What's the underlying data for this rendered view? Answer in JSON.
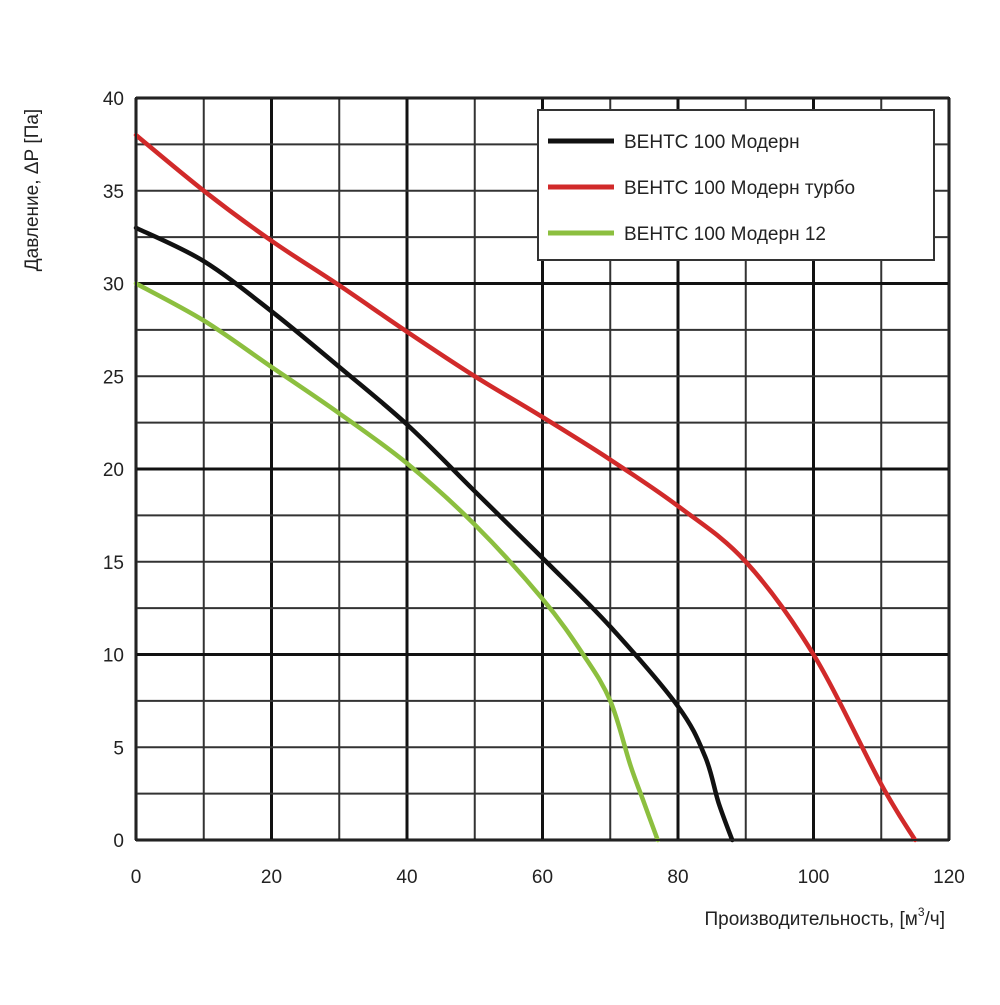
{
  "chart_data": {
    "type": "line",
    "title": "",
    "xlabel_prefix": "Производительность, [м",
    "xlabel_superscript": "3",
    "xlabel_suffix": "/ч]",
    "ylabel": "Давление, ΔР [Па]",
    "xlim": [
      0,
      120
    ],
    "ylim": [
      0,
      40
    ],
    "x_ticks": [
      0,
      20,
      40,
      60,
      80,
      100,
      120
    ],
    "y_ticks": [
      0,
      5,
      10,
      15,
      20,
      25,
      30,
      35,
      40
    ],
    "x_minor_step": 10,
    "y_minor_step": 2.5,
    "x_major_lines": [
      0,
      20,
      40,
      60,
      80,
      100,
      120
    ],
    "y_major_lines": [
      0,
      10,
      20,
      30,
      40
    ],
    "grid": true,
    "legend_position": "top-right",
    "series": [
      {
        "name": "ВЕНТС 100 Модерн",
        "color": "#111111",
        "points": [
          [
            0,
            33
          ],
          [
            10,
            31.2
          ],
          [
            20,
            28.5
          ],
          [
            30,
            25.5
          ],
          [
            40,
            22.4
          ],
          [
            50,
            18.8
          ],
          [
            60,
            15.2
          ],
          [
            70,
            11.5
          ],
          [
            80,
            7.2
          ],
          [
            84,
            4.5
          ],
          [
            86,
            2
          ],
          [
            88,
            0
          ]
        ]
      },
      {
        "name": "ВЕНТС 100 Модерн турбо",
        "color": "#d12a2a",
        "points": [
          [
            0,
            38
          ],
          [
            10,
            35
          ],
          [
            20,
            32.3
          ],
          [
            30,
            29.9
          ],
          [
            40,
            27.4
          ],
          [
            50,
            25
          ],
          [
            60,
            22.8
          ],
          [
            70,
            20.5
          ],
          [
            80,
            18
          ],
          [
            90,
            15
          ],
          [
            100,
            10
          ],
          [
            110,
            3
          ],
          [
            115,
            0
          ]
        ]
      },
      {
        "name": "ВЕНТС 100 Модерн 12",
        "color": "#8cbf3f",
        "points": [
          [
            0,
            30
          ],
          [
            10,
            28
          ],
          [
            20,
            25.5
          ],
          [
            30,
            23
          ],
          [
            40,
            20.3
          ],
          [
            50,
            17
          ],
          [
            60,
            13
          ],
          [
            66,
            10
          ],
          [
            70,
            7.5
          ],
          [
            73,
            4
          ],
          [
            75,
            2
          ],
          [
            77,
            0
          ]
        ]
      }
    ]
  }
}
